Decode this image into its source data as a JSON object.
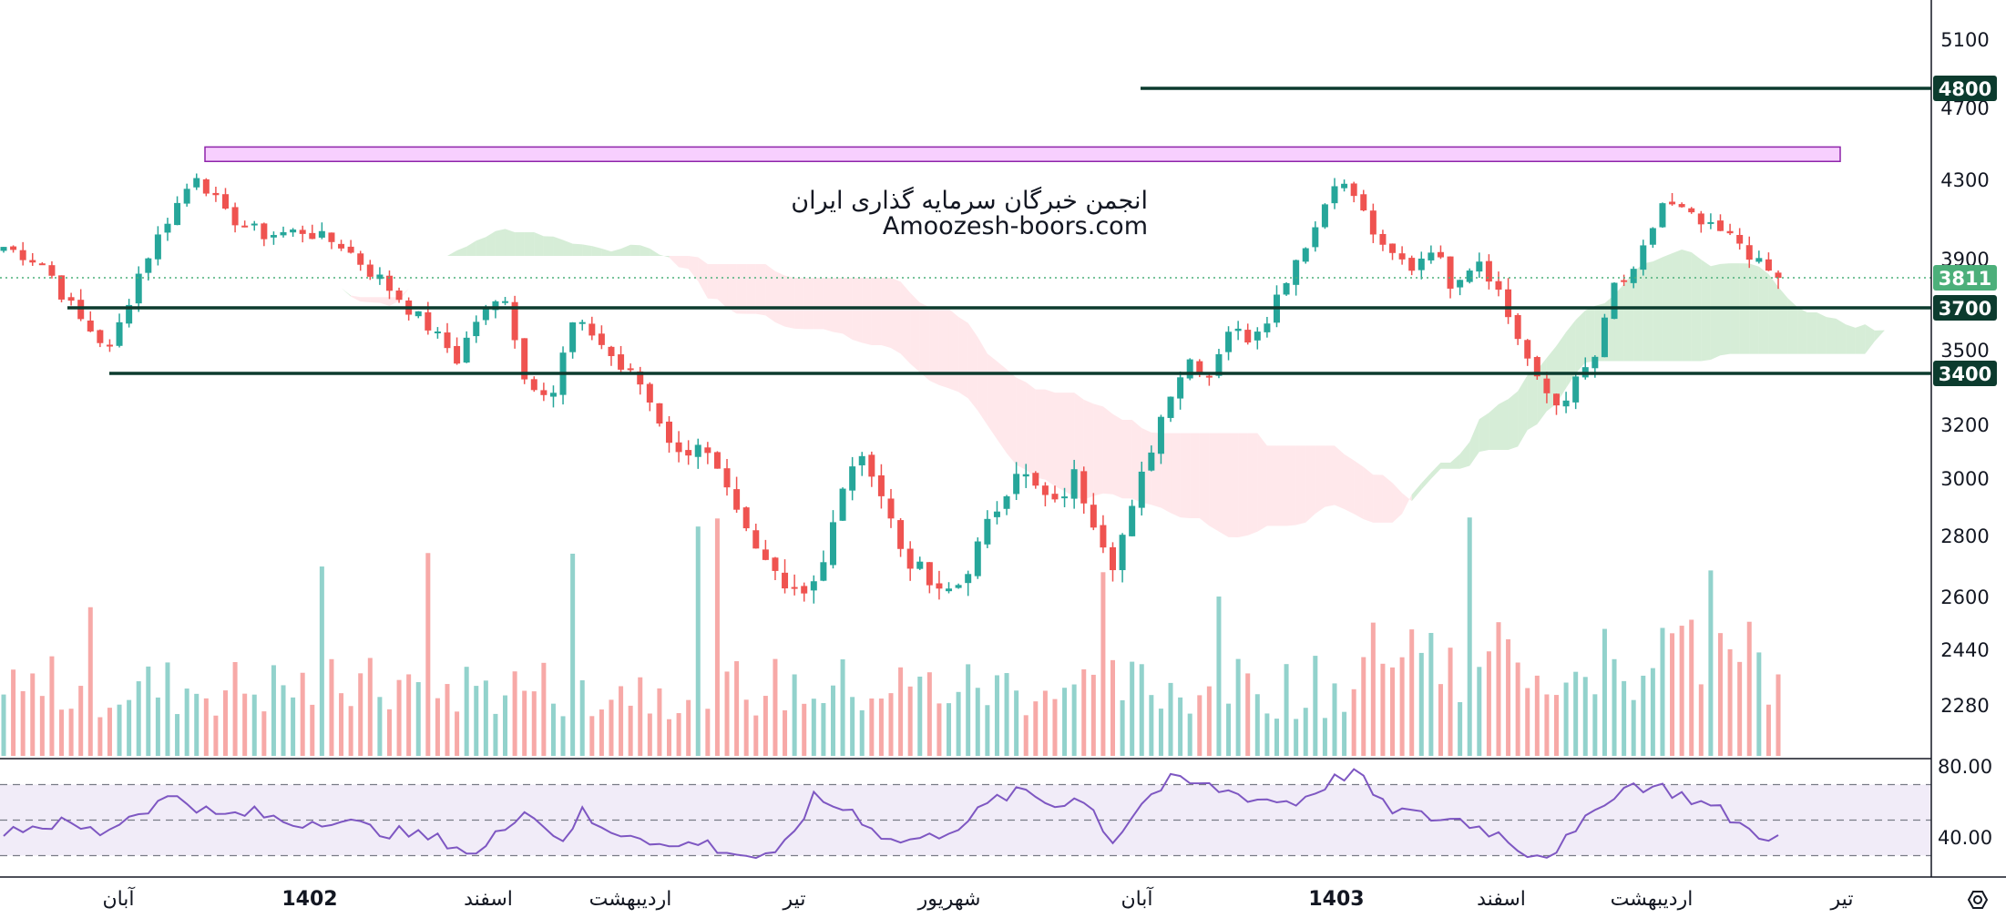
{
  "chart_data": {
    "type": "candlestick",
    "watermark": {
      "line1": "انجمن خبرگان سرمایه گذاری ایران",
      "line2": "Amoozesh-boors.com"
    },
    "price_axis": {
      "ticks": [
        {
          "label": "5100",
          "value": 5100
        },
        {
          "label": "4700",
          "value": 4700
        },
        {
          "label": "4300",
          "value": 4300
        },
        {
          "label": "3900",
          "value": 3900
        },
        {
          "label": "3500",
          "value": 3500
        },
        {
          "label": "3200",
          "value": 3200
        },
        {
          "label": "3000",
          "value": 3000
        },
        {
          "label": "2800",
          "value": 2800
        },
        {
          "label": "2600",
          "value": 2600
        },
        {
          "label": "2440",
          "value": 2440
        },
        {
          "label": "2280",
          "value": 2280
        }
      ]
    },
    "rsi_axis": {
      "ticks": [
        {
          "label": "80.00",
          "value": 80
        },
        {
          "label": "40.00",
          "value": 40
        }
      ],
      "upper_band": 70,
      "lower_band": 30
    },
    "time_axis": {
      "labels": [
        {
          "label": "آبان",
          "bold": false
        },
        {
          "label": "1402",
          "bold": true
        },
        {
          "label": "اسفند",
          "bold": false
        },
        {
          "label": "اردیبهشت",
          "bold": false
        },
        {
          "label": "تیر",
          "bold": false
        },
        {
          "label": "شهریور",
          "bold": false
        },
        {
          "label": "آبان",
          "bold": false
        },
        {
          "label": "1403",
          "bold": true
        },
        {
          "label": "اسفند",
          "bold": false
        },
        {
          "label": "اردیبهشت",
          "bold": false
        },
        {
          "label": "تیر",
          "bold": false
        }
      ]
    },
    "levels": [
      {
        "label": "4800",
        "value": 4800,
        "color": "#0c3b2e"
      },
      {
        "label": "3811",
        "value": 3811,
        "color": "#4caf7a"
      },
      {
        "label": "3700",
        "value": 3700,
        "color": "#0c3b2e"
      },
      {
        "label": "3400",
        "value": 3400,
        "color": "#0c3b2e"
      }
    ],
    "resistance_zone": {
      "low": 4400,
      "high": 4460,
      "color": "#e040fb"
    },
    "colors": {
      "up": "#26a69a",
      "down": "#ef5350",
      "cloud_up": "#a5d6a7",
      "cloud_down": "#ffcdd2",
      "rsi": "#7e57c2",
      "rsi_band": "#ede7f6"
    },
    "price_path": [
      [
        0,
        3960
      ],
      [
        4,
        3880
      ],
      [
        8,
        3640
      ],
      [
        11,
        3500
      ],
      [
        13,
        3740
      ],
      [
        17,
        4100
      ],
      [
        20,
        4330
      ],
      [
        23,
        4120
      ],
      [
        27,
        4020
      ],
      [
        31,
        4040
      ],
      [
        35,
        3970
      ],
      [
        38,
        3840
      ],
      [
        41,
        3740
      ],
      [
        44,
        3610
      ],
      [
        47,
        3460
      ],
      [
        49,
        3640
      ],
      [
        52,
        3750
      ],
      [
        54,
        3380
      ],
      [
        57,
        3330
      ],
      [
        59,
        3620
      ],
      [
        61,
        3580
      ],
      [
        64,
        3420
      ],
      [
        66,
        3360
      ],
      [
        68,
        3220
      ],
      [
        70,
        3080
      ],
      [
        72,
        3140
      ],
      [
        74,
        3010
      ],
      [
        76,
        2860
      ],
      [
        78,
        2740
      ],
      [
        80,
        2680
      ],
      [
        83,
        2620
      ],
      [
        85,
        2720
      ],
      [
        88,
        3060
      ],
      [
        90,
        3040
      ],
      [
        93,
        2760
      ],
      [
        95,
        2680
      ],
      [
        97,
        2600
      ],
      [
        99,
        2640
      ],
      [
        101,
        2760
      ],
      [
        103,
        2900
      ],
      [
        105,
        3040
      ],
      [
        107,
        2960
      ],
      [
        109,
        2900
      ],
      [
        111,
        3010
      ],
      [
        113,
        2860
      ],
      [
        115,
        2720
      ],
      [
        117,
        2880
      ],
      [
        119,
        3120
      ],
      [
        121,
        3340
      ],
      [
        123,
        3460
      ],
      [
        125,
        3400
      ],
      [
        127,
        3600
      ],
      [
        129,
        3560
      ],
      [
        131,
        3660
      ],
      [
        134,
        3900
      ],
      [
        136,
        4060
      ],
      [
        138,
        4300
      ],
      [
        140,
        4220
      ],
      [
        143,
        3940
      ],
      [
        146,
        3860
      ],
      [
        148,
        3960
      ],
      [
        150,
        3800
      ],
      [
        153,
        3900
      ],
      [
        155,
        3760
      ],
      [
        157,
        3560
      ],
      [
        159,
        3360
      ],
      [
        161,
        3280
      ],
      [
        163,
        3360
      ],
      [
        165,
        3470
      ],
      [
        167,
        3780
      ],
      [
        169,
        3820
      ],
      [
        172,
        4180
      ],
      [
        174,
        4140
      ],
      [
        176,
        4070
      ],
      [
        178,
        4030
      ],
      [
        180,
        3980
      ],
      [
        182,
        3870
      ],
      [
        184,
        3811
      ]
    ],
    "rsi_path": [
      [
        0,
        45
      ],
      [
        6,
        48
      ],
      [
        10,
        43
      ],
      [
        14,
        55
      ],
      [
        18,
        64
      ],
      [
        22,
        52
      ],
      [
        26,
        54
      ],
      [
        30,
        48
      ],
      [
        34,
        51
      ],
      [
        38,
        45
      ],
      [
        42,
        42
      ],
      [
        46,
        38
      ],
      [
        49,
        30
      ],
      [
        52,
        46
      ],
      [
        54,
        58
      ],
      [
        56,
        46
      ],
      [
        58,
        40
      ],
      [
        60,
        54
      ],
      [
        62,
        44
      ],
      [
        66,
        42
      ],
      [
        69,
        34
      ],
      [
        72,
        38
      ],
      [
        76,
        31
      ],
      [
        80,
        28
      ],
      [
        84,
        62
      ],
      [
        88,
        55
      ],
      [
        92,
        38
      ],
      [
        96,
        40
      ],
      [
        100,
        50
      ],
      [
        103,
        62
      ],
      [
        106,
        66
      ],
      [
        109,
        58
      ],
      [
        111,
        64
      ],
      [
        113,
        55
      ],
      [
        115,
        38
      ],
      [
        118,
        60
      ],
      [
        121,
        72
      ],
      [
        124,
        70
      ],
      [
        127,
        66
      ],
      [
        130,
        62
      ],
      [
        134,
        60
      ],
      [
        137,
        70
      ],
      [
        140,
        78
      ],
      [
        143,
        58
      ],
      [
        147,
        52
      ],
      [
        151,
        50
      ],
      [
        155,
        42
      ],
      [
        158,
        32
      ],
      [
        160,
        31
      ],
      [
        163,
        42
      ],
      [
        166,
        62
      ],
      [
        169,
        70
      ],
      [
        172,
        68
      ],
      [
        175,
        62
      ],
      [
        178,
        55
      ],
      [
        181,
        44
      ],
      [
        184,
        40
      ]
    ],
    "bars": 185
  }
}
